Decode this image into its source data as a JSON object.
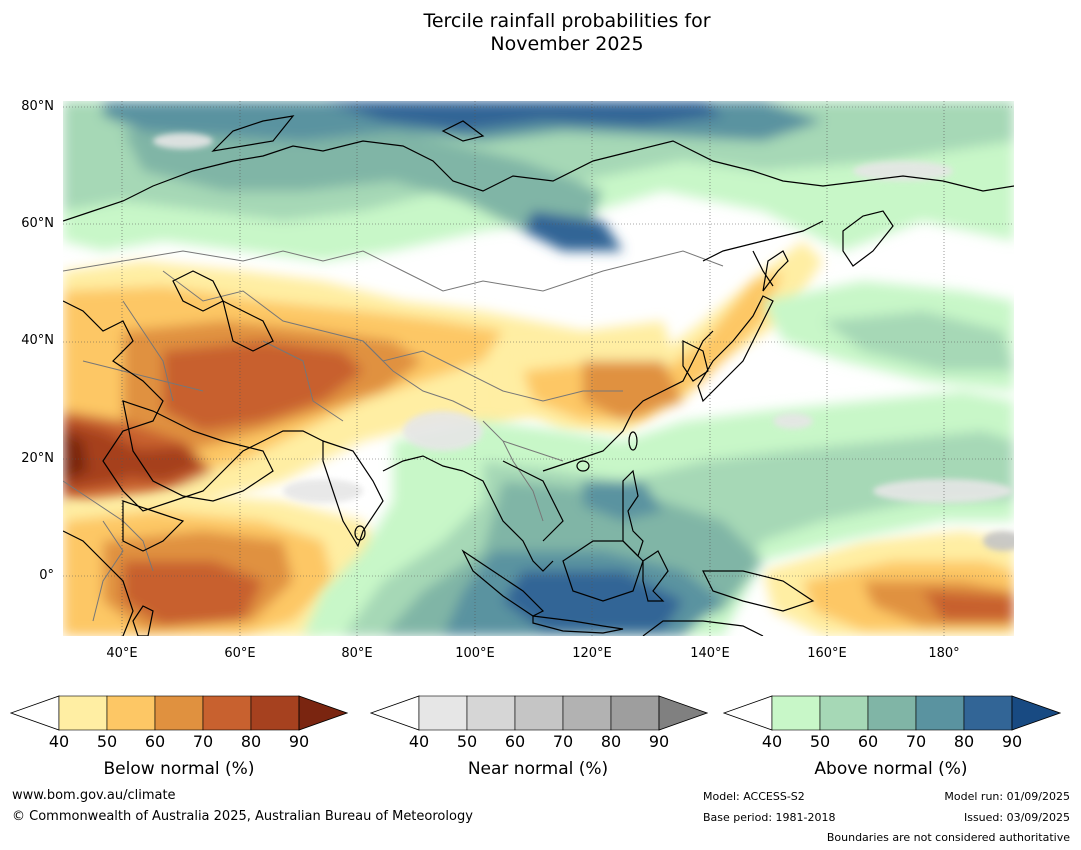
{
  "title_line1": "Tercile rainfall probabilities for",
  "title_line2": "November 2025",
  "map": {
    "lat_labels": [
      "80°N",
      "60°N",
      "40°N",
      "20°N",
      "0°"
    ],
    "lon_labels": [
      "40°E",
      "60°E",
      "80°E",
      "100°E",
      "120°E",
      "140°E",
      "160°E",
      "180°"
    ],
    "lat_range": [
      -10,
      80
    ],
    "lon_range": [
      30,
      192
    ]
  },
  "colorbars": [
    {
      "label": "Below normal (%)",
      "ticks": [
        "40",
        "50",
        "60",
        "70",
        "80",
        "90"
      ],
      "colors": [
        "#ffeea3",
        "#fdc765",
        "#e0913f",
        "#c8612f",
        "#a6411f",
        "#7a2510"
      ]
    },
    {
      "label": "Near normal (%)",
      "ticks": [
        "40",
        "50",
        "60",
        "70",
        "80",
        "90"
      ],
      "colors": [
        "#e6e6e6",
        "#d6d6d6",
        "#c5c5c5",
        "#b2b2b2",
        "#9e9e9e",
        "#808080"
      ]
    },
    {
      "label": "Above normal (%)",
      "ticks": [
        "40",
        "50",
        "60",
        "70",
        "80",
        "90"
      ],
      "colors": [
        "#c8f7c8",
        "#a6d8b6",
        "#80b5a6",
        "#5a93a0",
        "#326596",
        "#184a82"
      ]
    }
  ],
  "footer": {
    "website": "www.bom.gov.au/climate",
    "copyright": "© Commonwealth of Australia 2025, Australian Bureau of Meteorology",
    "model": "Model: ACCESS-S2",
    "base_period": "Base period: 1981-2018",
    "model_run": "Model run: 01/09/2025",
    "issued": "Issued: 03/09/2025",
    "disclaimer": "Boundaries are not considered authoritative"
  }
}
